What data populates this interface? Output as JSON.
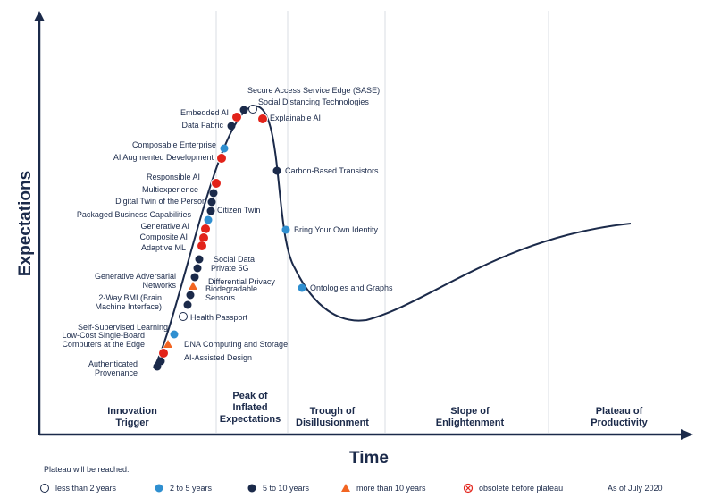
{
  "colors": {
    "navy": "#1b2a4a",
    "light_blue": "#2f8fd0",
    "red": "#e2231a",
    "orange": "#f26522",
    "white": "#ffffff",
    "grid": "#d9dde3"
  },
  "axes": {
    "y_title": "Expectations",
    "x_title": "Time"
  },
  "phases": [
    {
      "lines": [
        "Innovation",
        "Trigger"
      ]
    },
    {
      "lines": [
        "Peak of",
        "Inflated",
        "Expectations"
      ]
    },
    {
      "lines": [
        "Trough of",
        "Disillusionment"
      ]
    },
    {
      "lines": [
        "Slope of",
        "Enlightenment"
      ]
    },
    {
      "lines": [
        "Plateau of",
        "Productivity"
      ]
    }
  ],
  "technologies": [
    {
      "lines": [
        "Secure Access Service Edge (SASE)"
      ],
      "marker": "navy"
    },
    {
      "lines": [
        "Social Distancing Technologies"
      ],
      "marker": "white"
    },
    {
      "lines": [
        "Embedded AI"
      ],
      "marker": "red"
    },
    {
      "lines": [
        "Data Fabric"
      ],
      "marker": "navy"
    },
    {
      "lines": [
        "Explainable AI"
      ],
      "marker": "red"
    },
    {
      "lines": [
        "Composable Enterprise"
      ],
      "marker": "light_blue"
    },
    {
      "lines": [
        "AI Augmented Development"
      ],
      "marker": "red"
    },
    {
      "lines": [
        "Carbon-Based Transistors"
      ],
      "marker": "navy"
    },
    {
      "lines": [
        "Responsible AI"
      ],
      "marker": "red"
    },
    {
      "lines": [
        "Multiexperience"
      ],
      "marker": "navy"
    },
    {
      "lines": [
        "Digital Twin of the Person"
      ],
      "marker": "navy"
    },
    {
      "lines": [
        "Citizen Twin"
      ],
      "marker": "navy"
    },
    {
      "lines": [
        "Packaged Business Capabilities"
      ],
      "marker": "light_blue"
    },
    {
      "lines": [
        "Generative AI"
      ],
      "marker": "red"
    },
    {
      "lines": [
        "Bring Your Own Identity"
      ],
      "marker": "light_blue"
    },
    {
      "lines": [
        "Composite AI"
      ],
      "marker": "red"
    },
    {
      "lines": [
        "Adaptive ML"
      ],
      "marker": "red"
    },
    {
      "lines": [
        "Social Data"
      ],
      "marker": "navy"
    },
    {
      "lines": [
        "Private 5G"
      ],
      "marker": "navy"
    },
    {
      "lines": [
        "Differential Privacy"
      ],
      "marker": "navy"
    },
    {
      "lines": [
        "Generative Adversarial",
        "Networks"
      ],
      "marker": "orange"
    },
    {
      "lines": [
        "Biodegradable",
        "Sensors"
      ],
      "marker": "navy"
    },
    {
      "lines": [
        "Ontologies and Graphs"
      ],
      "marker": "light_blue"
    },
    {
      "lines": [
        "2-Way BMI (Brain",
        "Machine Interface)"
      ],
      "marker": "navy"
    },
    {
      "lines": [
        "Health Passport"
      ],
      "marker": "white"
    },
    {
      "lines": [
        "Self-Supervised Learning"
      ],
      "marker": "light_blue"
    },
    {
      "lines": [
        "Low-Cost Single-Board",
        "Computers at the Edge"
      ],
      "marker": "orange"
    },
    {
      "lines": [
        "DNA Computing and Storage"
      ],
      "marker": "red"
    },
    {
      "lines": [
        "AI-Assisted Design"
      ],
      "marker": "navy"
    },
    {
      "lines": [
        "Authenticated",
        "Provenance"
      ],
      "marker": "navy"
    }
  ],
  "legend": {
    "title": "Plateau will be reached:",
    "items": [
      {
        "label": "less than 2 years",
        "symbol": "white"
      },
      {
        "label": "2 to 5 years",
        "symbol": "light_blue"
      },
      {
        "label": "5 to 10 years",
        "symbol": "navy"
      },
      {
        "label": "more than 10 years",
        "symbol": "orange-triangle"
      },
      {
        "label": "obsolete before plateau",
        "symbol": "red-x"
      }
    ],
    "as_of": "As of July 2020"
  }
}
